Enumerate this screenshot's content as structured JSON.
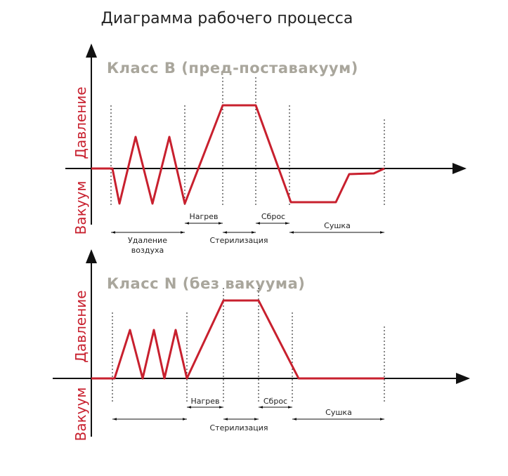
{
  "title": "Диаграмма рабочего процесса",
  "panels": [
    {
      "class_label": "Класс  B (пред-поставакуум)",
      "pressure_label": "Давление",
      "vacuum_label": "Вакуум",
      "phases": [
        {
          "lines": [
            "Удаление",
            "воздуха"
          ]
        },
        {
          "lines": [
            "Нагрев"
          ]
        },
        {
          "lines": [
            "Стерилизация"
          ]
        },
        {
          "lines": [
            "Сброс"
          ]
        },
        {
          "lines": [
            "Сушка"
          ]
        }
      ]
    },
    {
      "class_label": "Класс  N (без вакуума)",
      "pressure_label": "Давление",
      "vacuum_label": "Вакуум",
      "phases": [
        {
          "lines": [
            "Нагрев"
          ]
        },
        {
          "lines": [
            "Стерилизация"
          ]
        },
        {
          "lines": [
            "Сброс"
          ]
        },
        {
          "lines": [
            "Сушка"
          ]
        }
      ]
    }
  ]
}
